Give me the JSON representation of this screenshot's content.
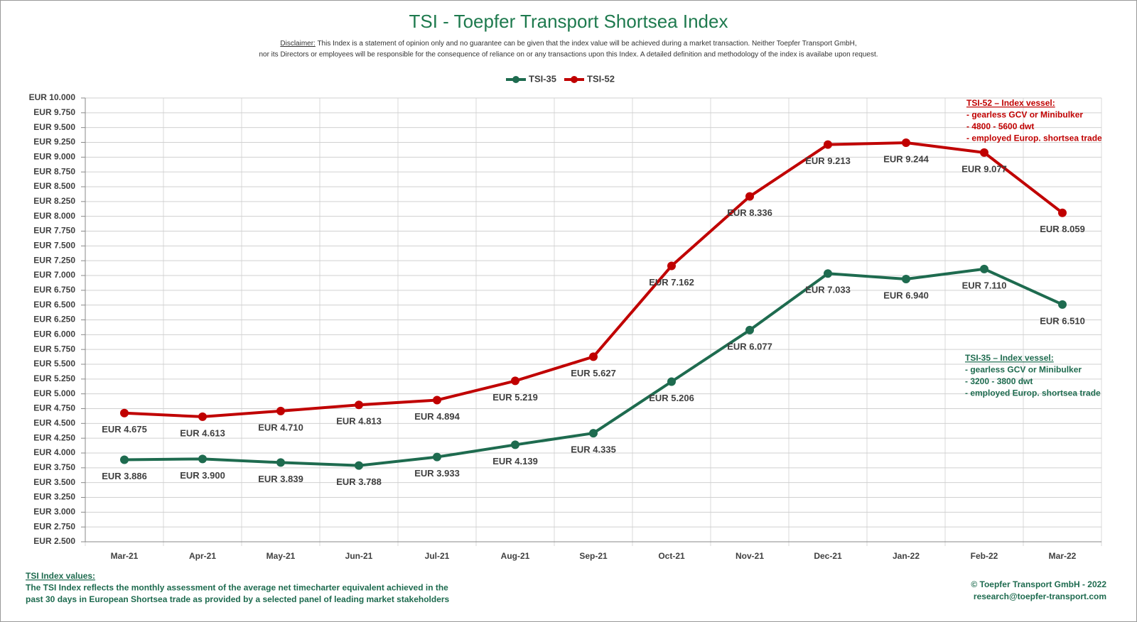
{
  "chart_data": {
    "type": "line",
    "title": "TSI - Toepfer Transport Shortsea Index",
    "disclaimer": {
      "label": "Disclaimer:",
      "lines": [
        "This Index is a statement of opinion only and no guarantee can be given that the index value will be achieved during a market transaction. Neither Toepfer Transport GmbH,",
        "nor its Directors or employees will be responsible for the consequence of reliance on or any transactions upon this Index.  A detailed definition and methodology of the index is availabe upon request."
      ]
    },
    "categories": [
      "Mar-21",
      "Apr-21",
      "May-21",
      "Jun-21",
      "Jul-21",
      "Aug-21",
      "Sep-21",
      "Oct-21",
      "Nov-21",
      "Dec-21",
      "Jan-22",
      "Feb-22",
      "Mar-22"
    ],
    "series": [
      {
        "name": "TSI-35",
        "color": "#1e6b4f",
        "values": [
          3886,
          3900,
          3839,
          3788,
          3933,
          4139,
          4335,
          5206,
          6077,
          7033,
          6940,
          7110,
          6510
        ],
        "value_labels": [
          "EUR 3.886",
          "EUR 3.900",
          "EUR 3.839",
          "EUR 3.788",
          "EUR 3.933",
          "EUR 4.139",
          "EUR 4.335",
          "EUR 5.206",
          "EUR 6.077",
          "EUR 7.033",
          "EUR 6.940",
          "EUR 7.110",
          "EUR 6.510"
        ]
      },
      {
        "name": "TSI-52",
        "color": "#c00000",
        "values": [
          4675,
          4613,
          4710,
          4813,
          4894,
          5219,
          5627,
          7162,
          8336,
          9213,
          9244,
          9077,
          8059
        ],
        "value_labels": [
          "EUR 4.675",
          "EUR 4.613",
          "EUR 4.710",
          "EUR 4.813",
          "EUR 4.894",
          "EUR 5.219",
          "EUR 5.627",
          "EUR 7.162",
          "EUR 8.336",
          "EUR 9.213",
          "EUR 9.244",
          "EUR 9.077",
          "EUR 8.059"
        ]
      }
    ],
    "ylim": [
      2500,
      10000
    ],
    "yticks": [
      {
        "value": 2500,
        "label": "EUR 2.500"
      },
      {
        "value": 2750,
        "label": "EUR 2.750"
      },
      {
        "value": 3000,
        "label": "EUR 3.000"
      },
      {
        "value": 3250,
        "label": "EUR 3.250"
      },
      {
        "value": 3500,
        "label": "EUR 3.500"
      },
      {
        "value": 3750,
        "label": "EUR 3.750"
      },
      {
        "value": 4000,
        "label": "EUR 4.000"
      },
      {
        "value": 4250,
        "label": "EUR 4.250"
      },
      {
        "value": 4500,
        "label": "EUR 4.500"
      },
      {
        "value": 4750,
        "label": "EUR 4.750"
      },
      {
        "value": 5000,
        "label": "EUR 5.000"
      },
      {
        "value": 5250,
        "label": "EUR 5.250"
      },
      {
        "value": 5500,
        "label": "EUR 5.500"
      },
      {
        "value": 5750,
        "label": "EUR 5.750"
      },
      {
        "value": 6000,
        "label": "EUR 6.000"
      },
      {
        "value": 6250,
        "label": "EUR 6.250"
      },
      {
        "value": 6500,
        "label": "EUR 6.500"
      },
      {
        "value": 6750,
        "label": "EUR 6.750"
      },
      {
        "value": 7000,
        "label": "EUR 7.000"
      },
      {
        "value": 7250,
        "label": "EUR 7.250"
      },
      {
        "value": 7500,
        "label": "EUR 7.500"
      },
      {
        "value": 7750,
        "label": "EUR 7.750"
      },
      {
        "value": 8000,
        "label": "EUR 8.000"
      },
      {
        "value": 8250,
        "label": "EUR 8.250"
      },
      {
        "value": 8500,
        "label": "EUR 8.500"
      },
      {
        "value": 8750,
        "label": "EUR 8.750"
      },
      {
        "value": 9000,
        "label": "EUR 9.000"
      },
      {
        "value": 9250,
        "label": "EUR 9.250"
      },
      {
        "value": 9500,
        "label": "EUR 9.500"
      },
      {
        "value": 9750,
        "label": "EUR 9.750"
      },
      {
        "value": 10000,
        "label": "EUR 10.000"
      }
    ],
    "grid": true,
    "legend": "top",
    "annotations": {
      "tsi52": {
        "heading": "TSI-52 – Index vessel:",
        "lines": [
          "- gearless GCV or Minibulker",
          "- 4800 - 5600 dwt",
          "- employed Europ. shortsea trade"
        ]
      },
      "tsi35": {
        "heading": "TSI-35 – Index vessel:",
        "lines": [
          "- gearless GCV or Minibulker",
          "- 3200 - 3800 dwt",
          "- employed Europ. shortsea trade"
        ]
      }
    },
    "footer": {
      "heading": "TSI Index values:",
      "lines": [
        "The TSI Index reflects the monthly assessment of the average net timecharter equivalent achieved in the",
        "past 30 days in European Shortsea trade as provided by a selected panel of leading market stakeholders"
      ],
      "credits": [
        "© Toepfer Transport GmbH - 2022",
        "research@toepfer-transport.com"
      ]
    }
  }
}
